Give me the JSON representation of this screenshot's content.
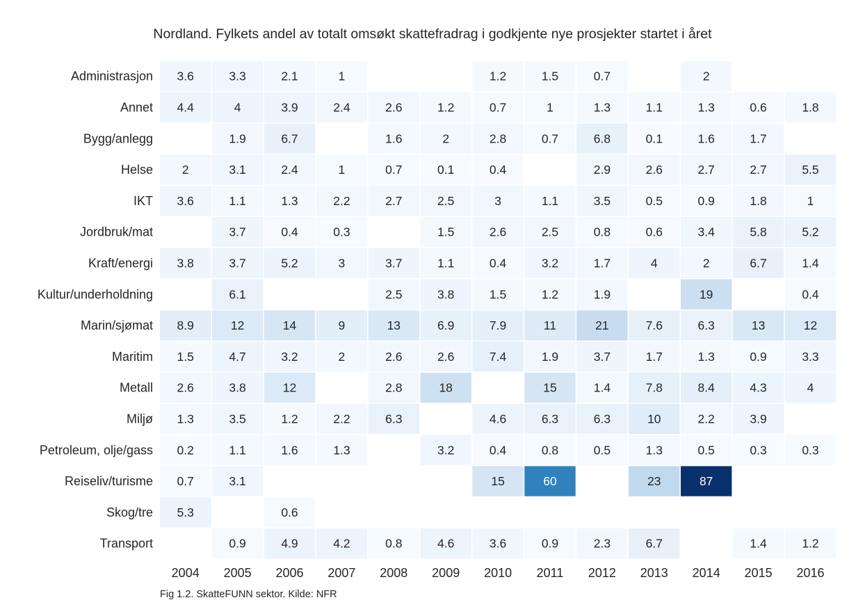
{
  "chart_data": {
    "type": "heatmap",
    "title": "Nordland. Fylkets andel av totalt omsøkt skattefradrag i godkjente nye prosjekter startet i året",
    "caption": "Fig 1.2. SkatteFUNN sektor. Kilde: NFR",
    "xlabel": "",
    "ylabel": "",
    "colormap": "Blues",
    "color_range": [
      0,
      87
    ],
    "colors": {
      "low": "#f7fbff",
      "high": "#08306b",
      "text_dark": "#262626",
      "text_light": "#ffffff"
    },
    "x": [
      "2004",
      "2005",
      "2006",
      "2007",
      "2008",
      "2009",
      "2010",
      "2011",
      "2012",
      "2013",
      "2014",
      "2015",
      "2016"
    ],
    "y": [
      "Administrasjon",
      "Annet",
      "Bygg/anlegg",
      "Helse",
      "IKT",
      "Jordbruk/mat",
      "Kraft/energi",
      "Kultur/underholdning",
      "Marin/sjømat",
      "Maritim",
      "Metall",
      "Miljø",
      "Petroleum, olje/gass",
      "Reiseliv/turisme",
      "Skog/tre",
      "Transport"
    ],
    "values": [
      [
        3.6,
        3.3,
        2.1,
        1,
        null,
        null,
        1.2,
        1.5,
        0.7,
        null,
        2,
        null,
        null
      ],
      [
        4.4,
        4,
        3.9,
        2.4,
        2.6,
        1.2,
        0.7,
        1,
        1.3,
        1.1,
        1.3,
        0.6,
        1.8
      ],
      [
        null,
        1.9,
        6.7,
        null,
        1.6,
        2,
        2.8,
        0.7,
        6.8,
        0.1,
        1.6,
        1.7,
        null
      ],
      [
        2,
        3.1,
        2.4,
        1,
        0.7,
        0.1,
        0.4,
        null,
        2.9,
        2.6,
        2.7,
        2.7,
        5.5
      ],
      [
        3.6,
        1.1,
        1.3,
        2.2,
        2.7,
        2.5,
        3,
        1.1,
        3.5,
        0.5,
        0.9,
        1.8,
        1
      ],
      [
        null,
        3.7,
        0.4,
        0.3,
        null,
        1.5,
        2.6,
        2.5,
        0.8,
        0.6,
        3.4,
        5.8,
        5.2
      ],
      [
        3.8,
        3.7,
        5.2,
        3,
        3.7,
        1.1,
        0.4,
        3.2,
        1.7,
        4,
        2,
        6.7,
        1.4
      ],
      [
        null,
        6.1,
        null,
        null,
        2.5,
        3.8,
        1.5,
        1.2,
        1.9,
        null,
        19,
        null,
        0.4
      ],
      [
        8.9,
        12,
        14,
        9,
        13,
        6.9,
        7.9,
        11,
        21,
        7.6,
        6.3,
        13,
        12
      ],
      [
        1.5,
        4.7,
        3.2,
        2,
        2.6,
        2.6,
        7.4,
        1.9,
        3.7,
        1.7,
        1.3,
        0.9,
        3.3
      ],
      [
        2.6,
        3.8,
        12,
        null,
        2.8,
        18,
        null,
        15,
        1.4,
        7.8,
        8.4,
        4.3,
        4
      ],
      [
        1.3,
        3.5,
        1.2,
        2.2,
        6.3,
        null,
        4.6,
        6.3,
        6.3,
        10,
        2.2,
        3.9,
        null
      ],
      [
        0.2,
        1.1,
        1.6,
        1.3,
        null,
        3.2,
        0.4,
        0.8,
        0.5,
        1.3,
        0.5,
        0.3,
        0.3
      ],
      [
        0.7,
        3.1,
        null,
        null,
        null,
        null,
        15,
        60,
        null,
        23,
        87,
        null,
        null
      ],
      [
        5.3,
        null,
        0.6,
        null,
        null,
        null,
        null,
        null,
        null,
        null,
        null,
        null,
        null
      ],
      [
        null,
        0.9,
        4.9,
        4.2,
        0.8,
        4.6,
        3.6,
        0.9,
        2.3,
        6.7,
        null,
        1.4,
        1.2
      ]
    ]
  }
}
